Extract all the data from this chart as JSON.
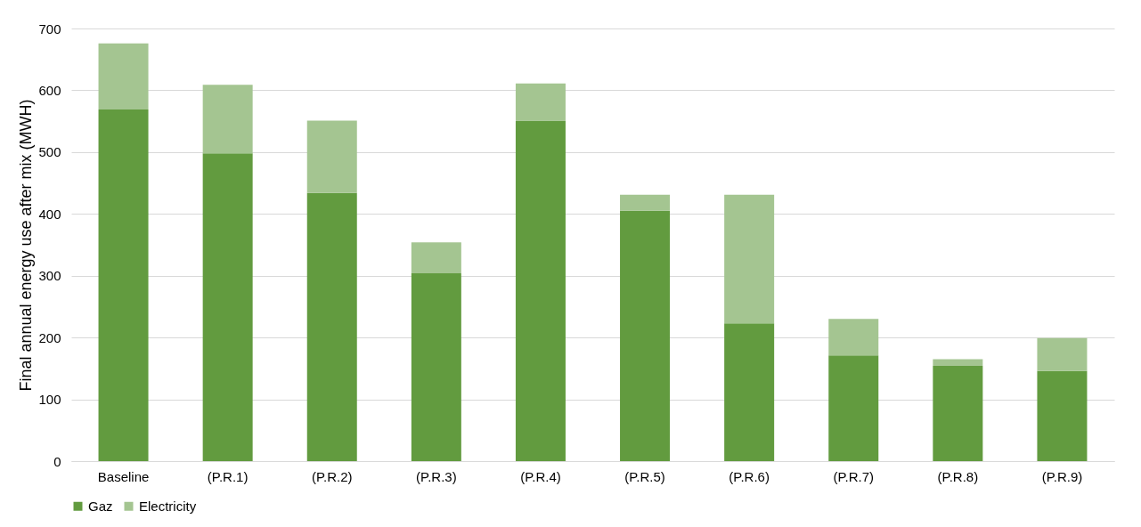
{
  "chart_data": {
    "type": "bar",
    "ylabel": "Final annual energy use after mix (MWH)",
    "stacked": true,
    "categories": [
      "Baseline",
      "(P.R.1)",
      "(P.R.2)",
      "(P.R.3)",
      "(P.R.4)",
      "(P.R.5)",
      "(P.R.6)",
      "(P.R.7)",
      "(P.R.8)",
      "(P.R.9)"
    ],
    "series": [
      {
        "name": "Gaz",
        "color": "#629b3f",
        "values": [
          569,
          498,
          434,
          304,
          551,
          405,
          223,
          171,
          154,
          146
        ]
      },
      {
        "name": "Electricity",
        "color": "#a4c591",
        "values": [
          107,
          111,
          117,
          50,
          60,
          26,
          208,
          59,
          11,
          53
        ]
      }
    ],
    "ylim": [
      0,
      700
    ],
    "yticks": [
      0,
      100,
      200,
      300,
      400,
      500,
      600,
      700
    ],
    "grid": "y",
    "legend": "bottom"
  }
}
